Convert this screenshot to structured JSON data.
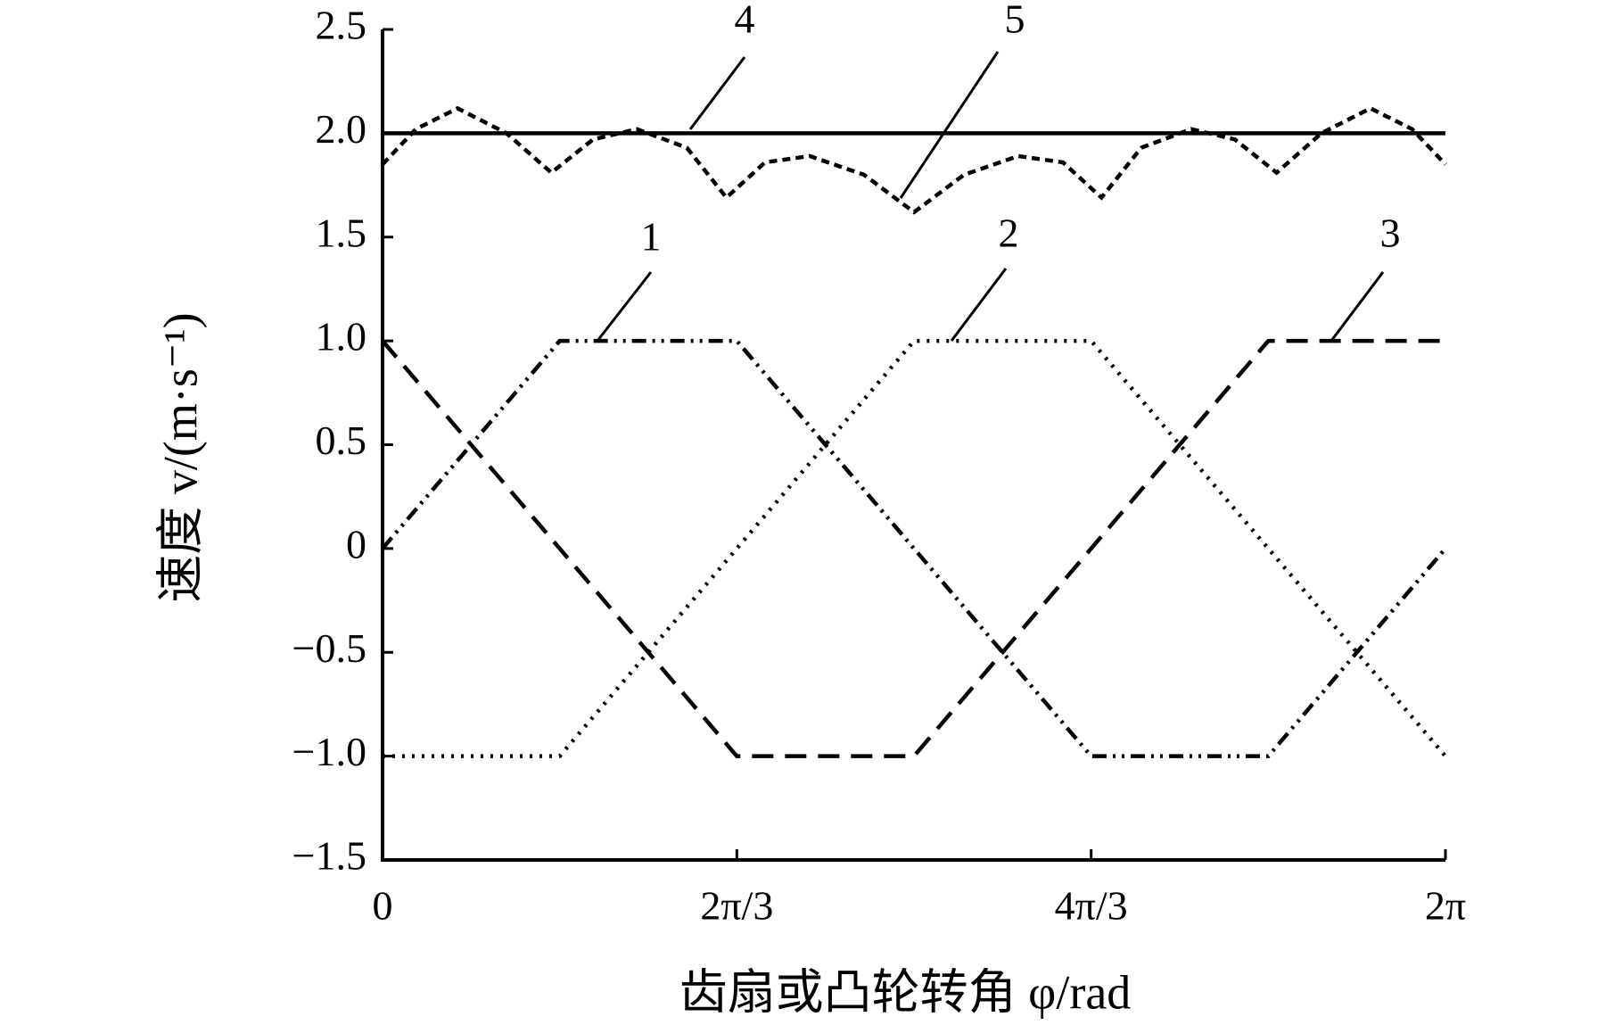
{
  "chart_data": {
    "type": "line",
    "xlabel": "齿扇或凸轮转角 φ/rad",
    "ylabel": "速度 v/(m·s⁻¹)",
    "xlim": [
      0,
      6.2832
    ],
    "xticks": [
      0,
      {
        "value": 2.0944,
        "label": "2π/3"
      },
      {
        "value": 4.1888,
        "label": "4π/3"
      },
      {
        "value": 6.2832,
        "label": "2π"
      }
    ],
    "ylim": [
      -1.5,
      2.5
    ],
    "yticks": [
      {
        "value": -1.5,
        "label": "−1.5"
      },
      {
        "value": -1,
        "label": "−1.0"
      },
      {
        "value": -0.5,
        "label": "−0.5"
      },
      0,
      0.5,
      {
        "value": 1,
        "label": "1.0"
      },
      1.5,
      {
        "value": 2,
        "label": "2.0"
      },
      2.5
    ],
    "series": [
      {
        "name": "1",
        "color": "#000000",
        "dash": "dash-dot-dot",
        "x": [
          0,
          1.0472,
          2.0944,
          4.1888,
          5.236,
          6.2832
        ],
        "values": [
          0,
          1,
          1,
          -1,
          -1,
          0
        ]
      },
      {
        "name": "2",
        "color": "#000000",
        "dash": "dotted",
        "x": [
          0,
          1.0472,
          3.1416,
          4.1888,
          6.2832
        ],
        "values": [
          -1,
          -1,
          1,
          1,
          -1
        ]
      },
      {
        "name": "3",
        "color": "#000000",
        "dash": "dashed",
        "x": [
          0,
          2.0944,
          3.1416,
          5.236,
          6.2832
        ],
        "values": [
          1,
          -1,
          -1,
          1,
          1
        ]
      },
      {
        "name": "4",
        "color": "#000000",
        "dash": "solid",
        "x": [
          0,
          6.2832
        ],
        "values": [
          2,
          2
        ]
      },
      {
        "name": "5",
        "color": "#000000",
        "dash": "short-dashed",
        "x": [
          0,
          0.197,
          0.4435,
          0.733,
          0.998,
          1.244,
          1.503,
          1.799,
          2.033,
          2.261,
          2.526,
          2.846,
          3.142,
          3.437,
          3.757,
          4.022,
          4.25,
          4.485,
          4.78,
          5.039,
          5.285,
          5.55,
          5.84,
          6.086,
          6.2832
        ],
        "values": [
          1.85,
          2.02,
          2.12,
          2.0,
          1.81,
          1.97,
          2.02,
          1.93,
          1.69,
          1.86,
          1.89,
          1.8,
          1.62,
          1.8,
          1.89,
          1.86,
          1.69,
          1.93,
          2.02,
          1.97,
          1.81,
          2.0,
          2.12,
          2.02,
          1.85
        ]
      }
    ]
  }
}
